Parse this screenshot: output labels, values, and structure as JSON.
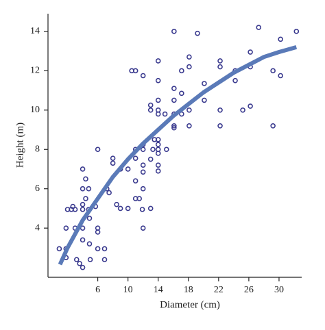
{
  "chart_data": {
    "type": "scatter",
    "x_label": "Diameter (cm)",
    "y_label": "Height (m)",
    "xlim": [
      -0.5,
      33
    ],
    "ylim": [
      1.5,
      14.9
    ],
    "xticks": [
      6,
      10,
      14,
      18,
      22,
      26,
      30
    ],
    "yticks": [
      4,
      6,
      8,
      10,
      12,
      14
    ],
    "points": {
      "color": "#3b3b8f",
      "x": [
        0.9,
        1.8,
        1.8,
        1.8,
        2,
        2.5,
        2.7,
        3,
        3,
        3.2,
        3.6,
        4,
        4,
        4,
        4,
        4,
        4,
        4,
        4.4,
        4.4,
        4.8,
        4.8,
        4.9,
        4.9,
        5,
        5.7,
        6,
        6,
        6,
        6,
        6.9,
        6.9,
        7.2,
        7.5,
        8,
        8,
        8.5,
        9,
        9,
        10,
        10,
        10.5,
        11,
        11,
        11,
        11,
        11,
        11.5,
        11.9,
        12,
        12,
        12,
        12,
        12,
        12,
        12,
        13,
        13,
        13,
        13,
        13.3,
        13.5,
        14,
        14,
        14,
        14,
        14,
        14,
        14,
        14,
        14,
        14,
        14,
        14.9,
        15.1,
        16.1,
        16.1,
        16.1,
        16.1,
        16.1,
        16.1,
        17.1,
        17.1,
        17.1,
        18.1,
        18.1,
        18.1,
        18.1,
        19.2,
        20.1,
        20.1,
        22.2,
        22.2,
        22.2,
        22.2,
        24.2,
        24.2,
        25.2,
        26.2,
        26.2,
        26.2,
        27.3,
        29.2,
        29.2,
        30.2,
        30.2,
        32.3
      ],
      "y": [
        2.95,
        2.95,
        2.5,
        4,
        4.95,
        4.95,
        5.1,
        4.95,
        4,
        2.4,
        2.2,
        2,
        3.4,
        4,
        4.95,
        5.2,
        6,
        7,
        6.5,
        5.5,
        6,
        4.95,
        4.5,
        3.2,
        2.4,
        5.1,
        4,
        3.8,
        2.95,
        8,
        2.95,
        2.4,
        6,
        5.8,
        7.55,
        7.3,
        5.2,
        5,
        7,
        5,
        7,
        12,
        12,
        8,
        7.55,
        6.4,
        5.5,
        5.5,
        4.95,
        11.75,
        8.25,
        8,
        7.2,
        6.85,
        6,
        4,
        5,
        10,
        10.25,
        7.5,
        8,
        8.5,
        12.5,
        11.5,
        10.5,
        10,
        9.8,
        8.5,
        8.25,
        8,
        7.8,
        7.2,
        6.9,
        9.8,
        8,
        14,
        11.1,
        10.5,
        9.8,
        9.2,
        9.1,
        12,
        10.85,
        9.8,
        12.7,
        12.2,
        9.2,
        10,
        13.9,
        11.35,
        10.5,
        12.5,
        12.2,
        10,
        9.2,
        12,
        11.5,
        10,
        12.95,
        12.2,
        10.2,
        14.2,
        12,
        9.2,
        11.75,
        13.6,
        14
      ]
    },
    "curve": {
      "color": "#5a7ab8",
      "x": [
        1,
        2,
        4,
        6,
        8,
        10,
        12,
        14,
        16,
        18,
        20,
        22,
        24,
        26,
        28,
        30,
        32.3
      ],
      "y": [
        2.15,
        3.0,
        4.4,
        5.5,
        6.6,
        7.5,
        8.3,
        9.0,
        9.7,
        10.3,
        10.9,
        11.4,
        11.9,
        12.3,
        12.7,
        12.95,
        13.2
      ]
    }
  }
}
